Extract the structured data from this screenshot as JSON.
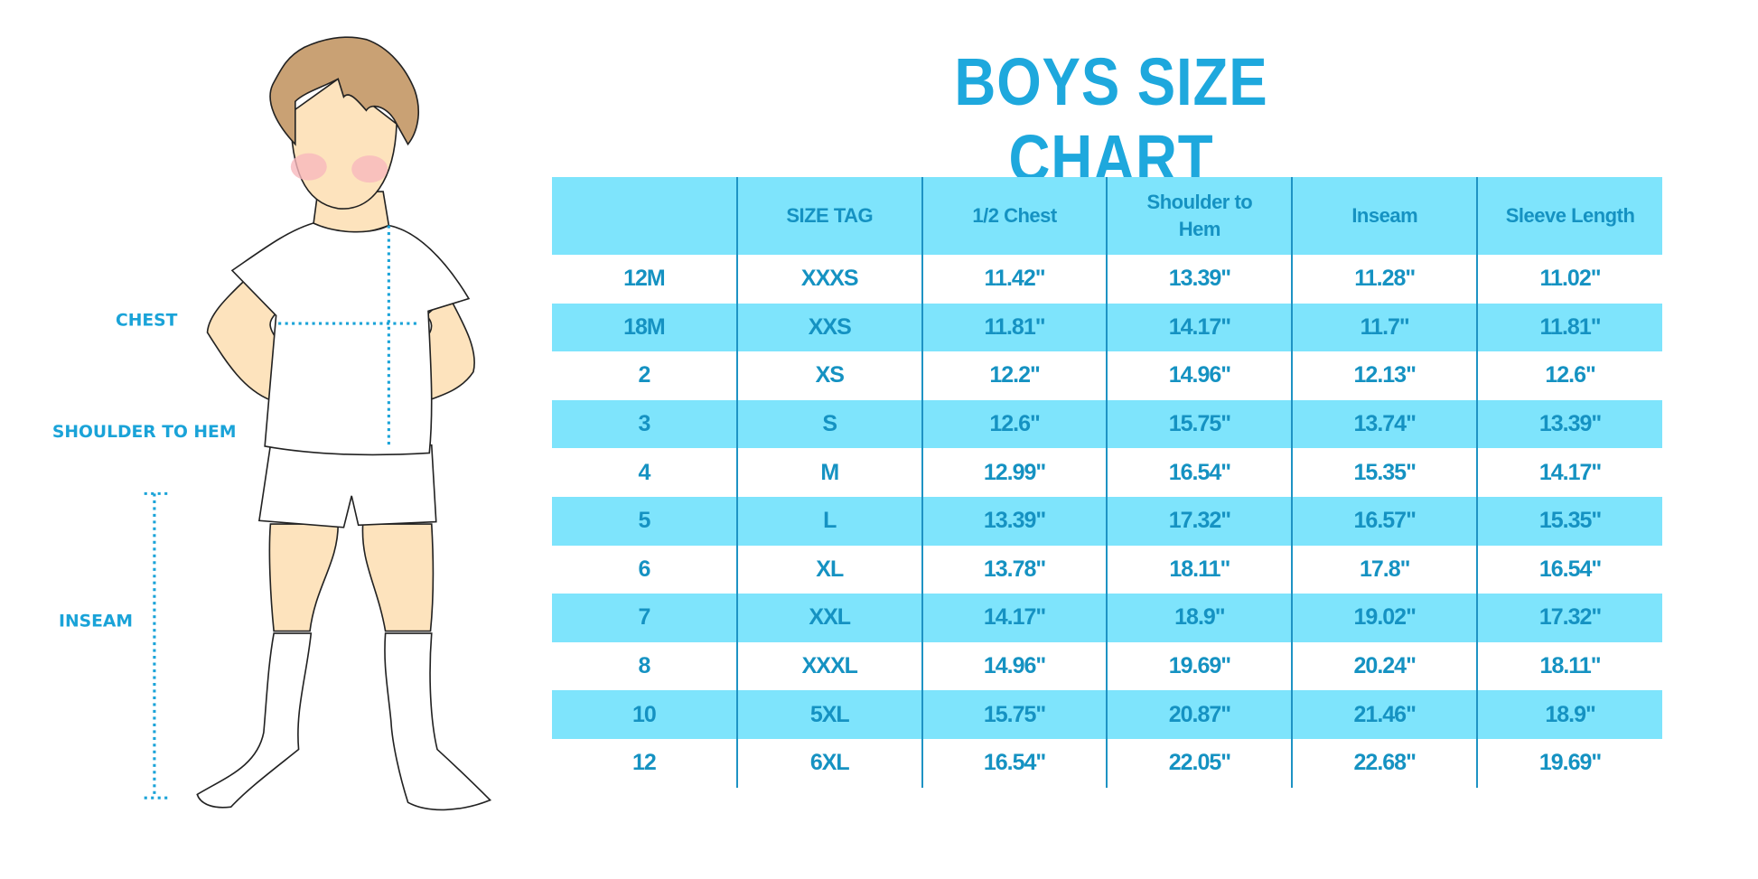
{
  "title": "BOYS SIZE CHART",
  "figure_labels": {
    "chest": "CHEST",
    "shoulder_to_hem": "SHOULDER TO HEM",
    "inseam": "INSEAM"
  },
  "colors": {
    "accent": "#1ea8dd",
    "row_highlight": "#7ee4fc",
    "text": "#1592c2"
  },
  "table": {
    "headers": [
      "",
      "SIZE TAG",
      "1/2 Chest",
      "Shoulder to Hem",
      "Inseam",
      "Sleeve Length"
    ],
    "rows": [
      [
        "12M",
        "XXXS",
        "11.42\"",
        "13.39\"",
        "11.28\"",
        "11.02\""
      ],
      [
        "18M",
        "XXS",
        "11.81\"",
        "14.17\"",
        "11.7\"",
        "11.81\""
      ],
      [
        "2",
        "XS",
        "12.2\"",
        "14.96\"",
        "12.13\"",
        "12.6\""
      ],
      [
        "3",
        "S",
        "12.6\"",
        "15.75\"",
        "13.74\"",
        "13.39\""
      ],
      [
        "4",
        "M",
        "12.99\"",
        "16.54\"",
        "15.35\"",
        "14.17\""
      ],
      [
        "5",
        "L",
        "13.39\"",
        "17.32\"",
        "16.57\"",
        "15.35\""
      ],
      [
        "6",
        "XL",
        "13.78\"",
        "18.11\"",
        "17.8\"",
        "16.54\""
      ],
      [
        "7",
        "XXL",
        "14.17\"",
        "18.9\"",
        "19.02\"",
        "17.32\""
      ],
      [
        "8",
        "XXXL",
        "14.96\"",
        "19.69\"",
        "20.24\"",
        "18.11\""
      ],
      [
        "10",
        "5XL",
        "15.75\"",
        "20.87\"",
        "21.46\"",
        "18.9\""
      ],
      [
        "12",
        "6XL",
        "16.54\"",
        "22.05\"",
        "22.68\"",
        "19.69\""
      ]
    ]
  }
}
